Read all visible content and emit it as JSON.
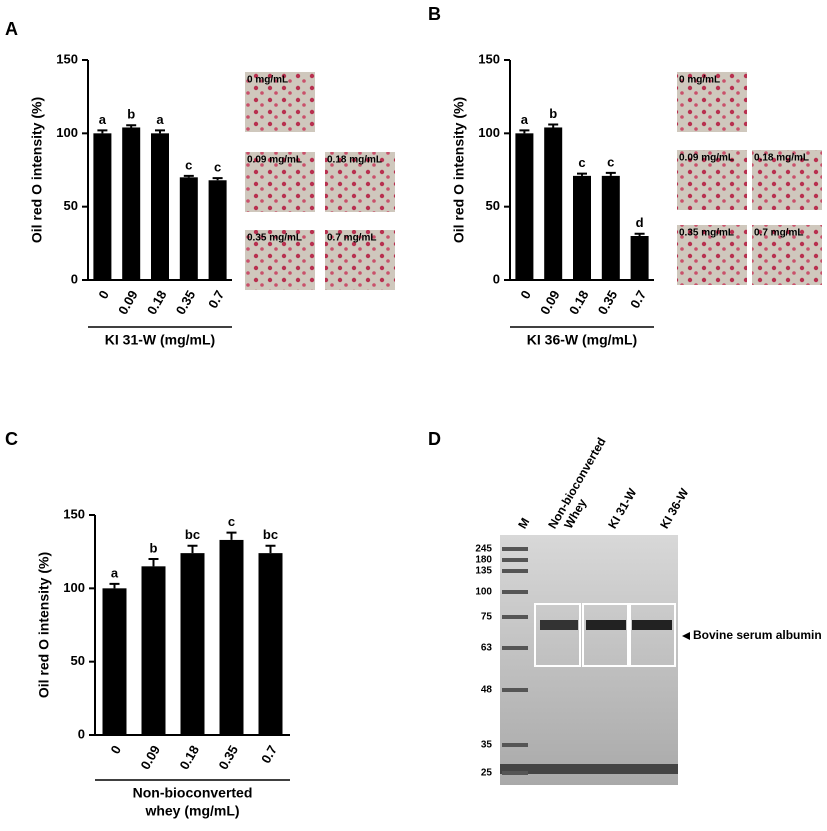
{
  "chart_data": [
    {
      "type": "bar",
      "panel": "A",
      "y_label": "Oil red O intensity (%)",
      "x_label": [
        "KI 31-W (mg/mL)"
      ],
      "categories": [
        "0",
        "0.09",
        "0.18",
        "0.35",
        "0.7"
      ],
      "values": [
        100,
        104,
        100,
        70,
        68
      ],
      "errors": [
        2,
        1.5,
        2,
        1,
        1.5
      ],
      "annotations": [
        "a",
        "b",
        "a",
        "c",
        "c"
      ],
      "color": "#000000",
      "ylim": [
        0,
        150
      ],
      "yticks": [
        0,
        50,
        100,
        150
      ],
      "grid": false,
      "image_labels": [
        "0 mg/mL",
        "0.09 mg/mL",
        "0.18 mg/mL",
        "0.35 mg/mL",
        "0.7 mg/mL"
      ]
    },
    {
      "type": "bar",
      "panel": "B",
      "y_label": "Oil red O intensity (%)",
      "x_label": [
        "KI 36-W (mg/mL)"
      ],
      "categories": [
        "0",
        "0.09",
        "0.18",
        "0.35",
        "0.7"
      ],
      "values": [
        100,
        104,
        71,
        71,
        30
      ],
      "errors": [
        2,
        2,
        1.5,
        2,
        1.5
      ],
      "annotations": [
        "a",
        "b",
        "c",
        "c",
        "d"
      ],
      "color": "#000000",
      "ylim": [
        0,
        150
      ],
      "yticks": [
        0,
        50,
        100,
        150
      ],
      "grid": false,
      "image_labels": [
        "0 mg/mL",
        "0.09 mg/mL",
        "0.18 mg/mL",
        "0.35 mg/mL",
        "0.7 mg/mL"
      ]
    },
    {
      "type": "bar",
      "panel": "C",
      "y_label": "Oil red O intensity (%)",
      "x_label": [
        "Non-bioconverted",
        "whey (mg/mL)"
      ],
      "categories": [
        "0",
        "0.09",
        "0.18",
        "0.35",
        "0.7"
      ],
      "values": [
        100,
        115,
        124,
        133,
        124
      ],
      "errors": [
        3,
        5,
        5,
        5,
        5
      ],
      "annotations": [
        "a",
        "b",
        "bc",
        "c",
        "bc"
      ],
      "color": "#000000",
      "ylim": [
        0,
        150
      ],
      "yticks": [
        0,
        50,
        100,
        150
      ],
      "grid": false
    }
  ],
  "gel": {
    "panel": "D",
    "lanes": [
      [
        "M"
      ],
      [
        "Non-bioconverted",
        "Whey"
      ],
      [
        "KI 31-W"
      ],
      [
        "KI 36-W"
      ]
    ],
    "markers": [
      245,
      180,
      135,
      100,
      75,
      63,
      48,
      35,
      25
    ],
    "band_label": "Bovine serum albumin"
  }
}
